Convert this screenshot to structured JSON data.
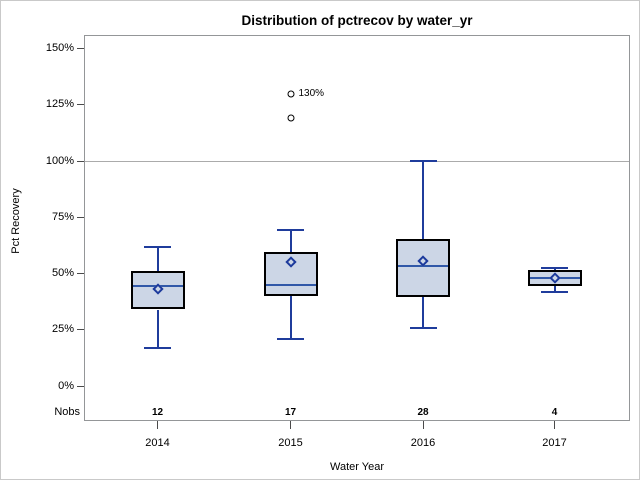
{
  "chart_data": {
    "type": "boxplot",
    "title": "Distribution of pctrecov by water_yr",
    "xlabel": "Water Year",
    "ylabel": "Pct Recovery",
    "ylim": [
      0,
      150
    ],
    "y_ticks": [
      {
        "v": 150,
        "label": "150%"
      },
      {
        "v": 125,
        "label": "125%"
      },
      {
        "v": 100,
        "label": "100%"
      },
      {
        "v": 75,
        "label": "75%"
      },
      {
        "v": 50,
        "label": "50%"
      },
      {
        "v": 25,
        "label": "25%"
      },
      {
        "v": 0,
        "label": "0%"
      }
    ],
    "reference_line": 100,
    "grid": "off",
    "legend": "none",
    "categories": [
      "2014",
      "2015",
      "2016",
      "2017"
    ],
    "nobs_label": "Nobs",
    "nobs": [
      "12",
      "17",
      "28",
      "4"
    ],
    "series": [
      {
        "category": "2014",
        "n": 12,
        "whisker_low": 17,
        "q1": 34,
        "median": 44.5,
        "mean": 43,
        "q3": 51,
        "whisker_high": 62,
        "outliers": []
      },
      {
        "category": "2015",
        "n": 17,
        "whisker_low": 21,
        "q1": 40,
        "median": 45,
        "mean": 55,
        "q3": 59.5,
        "whisker_high": 69.5,
        "outliers": [
          {
            "v": 119,
            "label": ""
          },
          {
            "v": 130,
            "label": "130%"
          }
        ]
      },
      {
        "category": "2016",
        "n": 28,
        "whisker_low": 26,
        "q1": 39.5,
        "median": 53.5,
        "mean": 55.5,
        "q3": 65.5,
        "whisker_high": 100,
        "outliers": []
      },
      {
        "category": "2017",
        "n": 4,
        "whisker_low": 42,
        "q1": 44.5,
        "median": 48,
        "mean": 48,
        "q3": 51.5,
        "whisker_high": 52.5,
        "outliers": []
      }
    ],
    "colors": {
      "box_fill": "#ccd6e6",
      "box_border": "#000000",
      "whisker": "#1f3c9c",
      "median": "#3058a8",
      "mean_marker": "#1c3a9c",
      "outlier": "#000000",
      "reference_line": "#ababab",
      "plot_border": "#949698",
      "tick": "#4a4a4a",
      "text": "#000000"
    }
  }
}
